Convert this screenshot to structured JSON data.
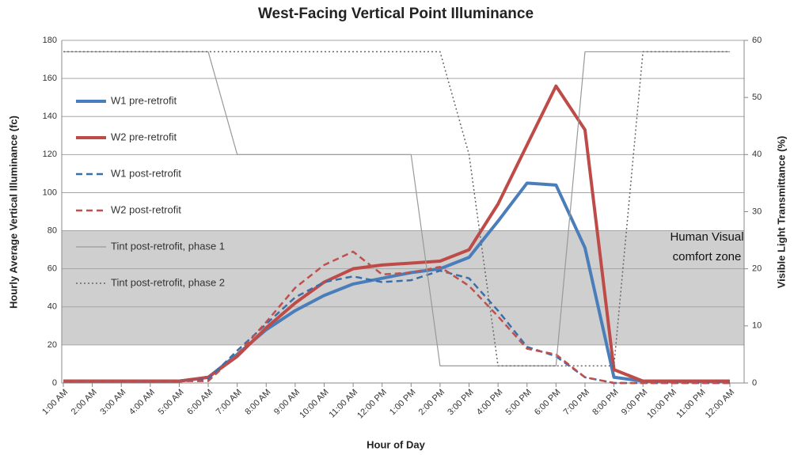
{
  "chart_data": {
    "type": "line",
    "title": "West-Facing Vertical Point Illuminance",
    "x_label": "Hour of Day",
    "y_label": "Hourly Average Vertical Illuminance (fc)",
    "y2_label": "Visible Light Transmittance (%)",
    "categories": [
      "1:00 AM",
      "2:00 AM",
      "3:00 AM",
      "4:00 AM",
      "5:00 AM",
      "6:00 AM",
      "7:00 AM",
      "8:00 AM",
      "9:00 AM",
      "10:00 AM",
      "11:00 AM",
      "12:00 PM",
      "1:00 PM",
      "2:00 PM",
      "3:00 PM",
      "4:00 PM",
      "5:00 PM",
      "6:00 PM",
      "7:00 PM",
      "8:00 PM",
      "9:00 PM",
      "10:00 PM",
      "11:00 PM",
      "12:00 AM"
    ],
    "ylim": [
      0,
      180
    ],
    "yticks": [
      0,
      20,
      40,
      60,
      80,
      100,
      120,
      140,
      160,
      180
    ],
    "y2lim": [
      0,
      60
    ],
    "y2ticks": [
      0,
      10,
      20,
      30,
      40,
      50,
      60
    ],
    "grid": true,
    "legend": "left",
    "band": {
      "ylim": [
        20,
        80
      ],
      "color": "#cfcfcf",
      "label": [
        "Human Visual",
        "comfort zone"
      ]
    },
    "series": [
      {
        "name": "W1 pre-retrofit",
        "color": "#4a7ebb",
        "style": "solid",
        "width": 4,
        "values": [
          1,
          1,
          1,
          1,
          1,
          3,
          15,
          28,
          38,
          46,
          52,
          55,
          58,
          60,
          66,
          85,
          105,
          104,
          71,
          3,
          1,
          1,
          1,
          1
        ]
      },
      {
        "name": "W2 pre-retrofit",
        "color": "#be4b48",
        "style": "solid",
        "width": 4,
        "values": [
          1,
          1,
          1,
          1,
          1,
          3,
          14,
          29,
          42,
          53,
          60,
          62,
          63,
          64,
          70,
          94,
          125,
          156,
          133,
          7,
          1,
          1,
          1,
          1
        ]
      },
      {
        "name": "W1 post-retrofit",
        "color": "#3b6fa8",
        "style": "dashed",
        "width": 2.5,
        "values": [
          1,
          1,
          1,
          1,
          1,
          2,
          17,
          31,
          45,
          53,
          56,
          53,
          54,
          59,
          55,
          38,
          19,
          14,
          3,
          0,
          0,
          0,
          0,
          0
        ]
      },
      {
        "name": "W2 post-retrofit",
        "color": "#c0504d",
        "style": "dashed",
        "width": 2.5,
        "values": [
          1,
          1,
          1,
          1,
          1,
          1,
          15,
          32,
          50,
          62,
          69,
          57,
          58,
          61,
          51,
          35,
          18,
          15,
          3,
          0,
          0,
          0,
          0,
          0
        ]
      },
      {
        "name": "Tint post-retrofit, phase 1",
        "color": "#999999",
        "style": "solid",
        "width": 1.2,
        "axis": "y2",
        "values": [
          58,
          58,
          58,
          58,
          58,
          58,
          40,
          40,
          40,
          40,
          40,
          40,
          40,
          3,
          3,
          3,
          3,
          3,
          58,
          58,
          58,
          58,
          58,
          58
        ]
      },
      {
        "name": "Tint post-retrofit, phase 2",
        "color": "#666666",
        "style": "dotted",
        "width": 1.5,
        "axis": "y2",
        "values": [
          58,
          58,
          58,
          58,
          58,
          58,
          58,
          58,
          58,
          58,
          58,
          58,
          58,
          58,
          40,
          3,
          3,
          3,
          3,
          3,
          58,
          58,
          58,
          58
        ]
      }
    ]
  }
}
